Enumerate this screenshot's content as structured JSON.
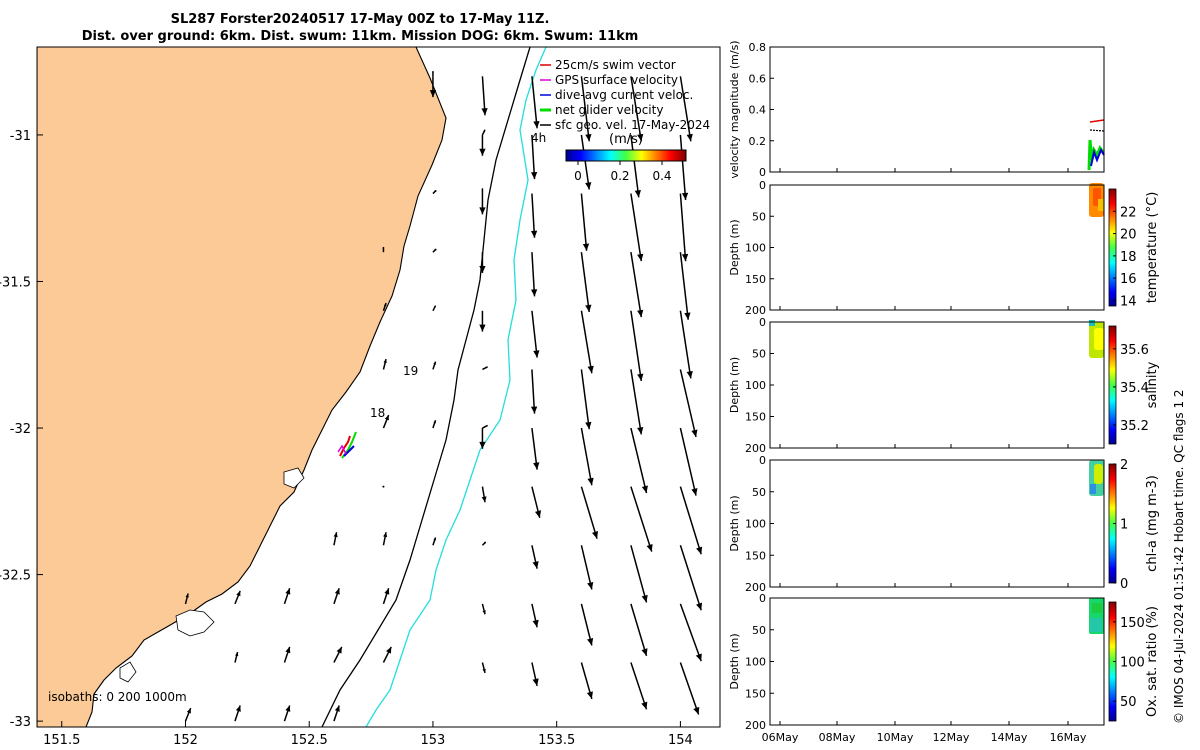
{
  "title": {
    "line1": "SL287 Forster20240517 17-May 00Z to 17-May 11Z.",
    "line2": "Dist. over ground: 6km. Dist. swum: 11km. Mission DOG: 6km. Swum: 11km"
  },
  "credit": "© IMOS 04-Jul-2024 01:51:42 Hobart time. QC flags 1 2",
  "colors": {
    "land": "#fbca96",
    "isobath_200": "#000000",
    "isobath_1000": "#22dede",
    "swim": "#e00000",
    "gps": "#e000e0",
    "dive": "#0000e0",
    "net": "#00dd00"
  },
  "map": {
    "legend": [
      "25cm/s swim vector",
      "GPS surface velocity",
      "dive-avg current veloc.",
      "net glider velocity",
      "sfc geo. vel. 17-May-2024"
    ],
    "colorbar": {
      "label": "(m/s)",
      "ticks": [
        "0",
        "0.2",
        "0.4"
      ]
    },
    "time_labels": [
      "4h",
      "19",
      "18"
    ],
    "isobath_label": "isobaths: 0   200  1000m"
  },
  "chart_data": [
    {
      "type": "map",
      "x_ticks": [
        "151.5",
        "152",
        "152.5",
        "153",
        "153.5",
        "154"
      ],
      "y_ticks": [
        "-31",
        "-31.5",
        "-32",
        "-32.5",
        "-33"
      ],
      "xlim": [
        151.4,
        154.16
      ],
      "ylim": [
        -33.02,
        -30.7
      ],
      "series": [
        {
          "name": "sfc geo. vel. 17-May-2024",
          "lon": [
            153,
            153.2,
            153.4,
            153.6,
            153.8,
            154,
            153.2,
            153.4,
            153.6,
            153.8,
            154,
            153.2,
            153.4,
            153.6,
            153.8,
            154,
            153.2,
            153.4,
            153.6,
            153.8,
            154,
            153.2,
            153.4,
            153.6,
            153.8,
            154,
            153.4,
            153.6,
            153.8,
            154,
            153.2,
            153.4,
            153.6,
            153.8,
            154,
            153.2,
            153.4,
            153.6,
            153.8,
            154,
            153.4,
            153.6,
            153.8,
            154,
            153.2,
            153.4,
            153.6,
            153.8,
            154,
            153.2,
            153.4,
            153.6,
            153.8,
            154,
            152.0,
            152.2,
            152.4,
            152.6,
            152.2,
            152.4,
            152.6,
            152.8,
            152.0,
            152.2,
            152.4,
            152.6,
            152.8,
            152.6,
            152.8,
            153.0,
            153.2,
            152.8,
            153.0,
            153.2,
            152.8,
            153.0,
            153.2,
            152.8,
            153.0,
            152.8,
            153.0,
            153.2,
            153.0,
            153.2,
            153.0,
            152.8
          ],
          "lat": [
            -30.8,
            -30.8,
            -30.8,
            -30.8,
            -30.8,
            -30.8,
            -31.0,
            -31.0,
            -31.0,
            -31.0,
            -31.0,
            -31.2,
            -31.2,
            -31.2,
            -31.2,
            -31.2,
            -31.4,
            -31.4,
            -31.4,
            -31.4,
            -31.4,
            -31.6,
            -31.6,
            -31.6,
            -31.6,
            -31.6,
            -31.8,
            -31.8,
            -31.8,
            -31.8,
            -32.0,
            -32.0,
            -32.0,
            -32.0,
            -32.0,
            -32.2,
            -32.2,
            -32.2,
            -32.2,
            -32.2,
            -32.4,
            -32.4,
            -32.4,
            -32.4,
            -32.6,
            -32.6,
            -32.6,
            -32.6,
            -32.6,
            -32.8,
            -32.8,
            -32.8,
            -32.8,
            -32.8,
            -33.0,
            -33.0,
            -33.0,
            -33.0,
            -32.8,
            -32.8,
            -32.8,
            -32.8,
            -32.6,
            -32.6,
            -32.6,
            -32.6,
            -32.6,
            -32.4,
            -32.4,
            -32.4,
            -32.4,
            -32.0,
            -32.0,
            -32.0,
            -31.8,
            -31.8,
            -31.8,
            -31.6,
            -31.6,
            -31.4,
            -31.4,
            -31.2,
            -31.2,
            -31.0,
            -30.8,
            -32.2
          ],
          "u": [
            0,
            0.01,
            0.02,
            0.03,
            0.04,
            0.04,
            0,
            0.01,
            0.03,
            0.03,
            0.02,
            0,
            0.01,
            0.02,
            0.04,
            0.02,
            0,
            0.01,
            0.03,
            0.04,
            0.03,
            0,
            0.02,
            0.04,
            0.04,
            0.04,
            0.01,
            0.03,
            0.04,
            0.06,
            0,
            0.02,
            0.04,
            0.06,
            0.06,
            0.01,
            0.03,
            0.06,
            0.08,
            0.08,
            0.02,
            0.04,
            0.06,
            0.08,
            0.01,
            0.02,
            0.04,
            0.06,
            0.08,
            0.01,
            0.02,
            0.04,
            0.06,
            0.07,
            0.02,
            0.02,
            0.02,
            0.02,
            0.01,
            0.02,
            0.03,
            0.03,
            0.01,
            0.02,
            0.02,
            0.02,
            0.02,
            0.01,
            0.01,
            0.01,
            0.01,
            0.02,
            0.01,
            0.02,
            0.01,
            0.01,
            0.02,
            0.01,
            0.01,
            0,
            0.01,
            0,
            0.01,
            0.01,
            0,
            0
          ],
          "v": [
            -0.08,
            -0.15,
            -0.2,
            -0.25,
            -0.25,
            -0.25,
            -0.08,
            -0.17,
            -0.21,
            -0.24,
            -0.25,
            -0.08,
            -0.17,
            -0.22,
            -0.26,
            -0.26,
            -0.08,
            -0.17,
            -0.23,
            -0.25,
            -0.26,
            -0.08,
            -0.18,
            -0.24,
            -0.27,
            -0.26,
            -0.17,
            -0.23,
            -0.25,
            -0.26,
            -0.08,
            -0.16,
            -0.22,
            -0.25,
            -0.26,
            -0.06,
            -0.12,
            -0.2,
            -0.25,
            -0.26,
            -0.09,
            -0.17,
            -0.22,
            -0.25,
            -0.04,
            -0.09,
            -0.16,
            -0.2,
            -0.22,
            -0.04,
            -0.09,
            -0.14,
            -0.18,
            -0.2,
            0.05,
            0.06,
            0.06,
            0.06,
            0.04,
            0.06,
            0.06,
            0.06,
            0.04,
            0.05,
            0.06,
            0.06,
            0.06,
            0.05,
            0.05,
            0.03,
            0.01,
            0.05,
            0.03,
            0.01,
            0.04,
            0.03,
            0.01,
            0.03,
            0.02,
            0.02,
            0.01,
            0.02,
            0.01,
            0.02,
            0.02,
            0
          ]
        }
      ]
    },
    {
      "type": "line",
      "ylabel": "velocity magnitude (m/s)",
      "ylim": [
        0,
        0.8
      ],
      "y_ticks": [
        "0",
        "0.2",
        "0.4",
        "0.6",
        "0.8"
      ],
      "x_ticks": [
        "06May",
        "08May",
        "10May",
        "12May",
        "14May",
        "16May"
      ]
    },
    {
      "type": "heatmap",
      "ylabel": "Depth (m)",
      "ylim": [
        200,
        0
      ],
      "y_ticks": [
        "0",
        "50",
        "100",
        "150",
        "200"
      ],
      "colorbar_label": "temperature (°C)",
      "colorbar_ticks": [
        "14",
        "16",
        "18",
        "20",
        "22"
      ],
      "clim": [
        13.5,
        24
      ]
    },
    {
      "type": "heatmap",
      "ylabel": "Depth (m)",
      "ylim": [
        200,
        0
      ],
      "y_ticks": [
        "0",
        "50",
        "100",
        "150",
        "200"
      ],
      "colorbar_label": "salinity",
      "colorbar_ticks": [
        "35.2",
        "35.4",
        "35.6"
      ],
      "clim": [
        35.1,
        35.72
      ]
    },
    {
      "type": "heatmap",
      "ylabel": "Depth (m)",
      "ylim": [
        200,
        0
      ],
      "y_ticks": [
        "0",
        "50",
        "100",
        "150",
        "200"
      ],
      "colorbar_label": "chl-a (mg m-3)",
      "colorbar_ticks": [
        "0",
        "1",
        "2"
      ],
      "clim": [
        0,
        2
      ]
    },
    {
      "type": "heatmap",
      "ylabel": "Depth (m)",
      "ylim": [
        200,
        0
      ],
      "y_ticks": [
        "0",
        "50",
        "100",
        "150",
        "200"
      ],
      "colorbar_label": "Ox. sat. ratio (%)",
      "colorbar_ticks": [
        "50",
        "100",
        "150"
      ],
      "clim": [
        25,
        175
      ]
    }
  ]
}
